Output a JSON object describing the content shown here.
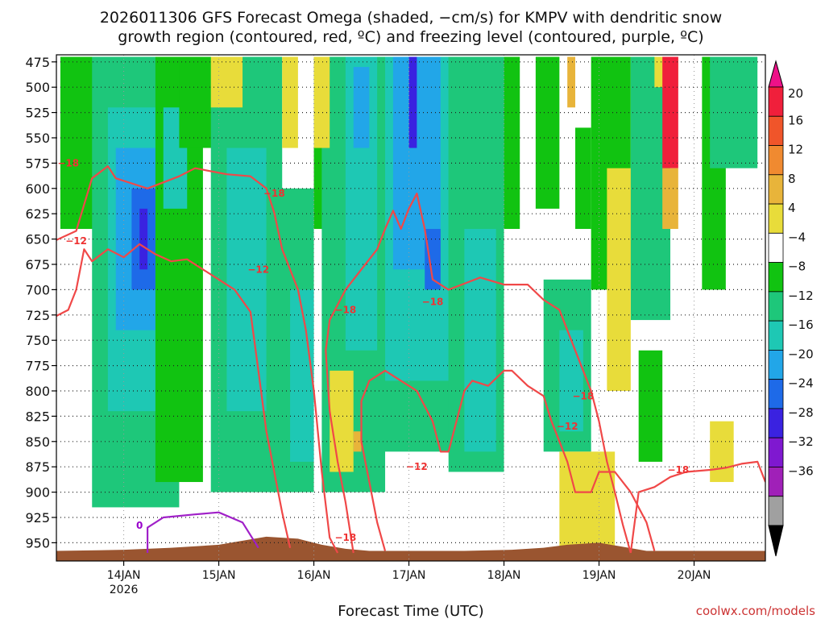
{
  "chart_data": {
    "type": "heatmap",
    "title_lines": [
      "2026011306 GFS Forecast Omega (shaded, −cm/s) for KMPV with dendritic snow",
      "growth region (contoured, red, ºC) and freezing level (contoured, purple, ºC)"
    ],
    "xlabel": "Forecast Time (UTC)",
    "credit": "coolwx.com/models",
    "x_range_hours": [
      -17,
      162
    ],
    "x_ticks": [
      {
        "hour": 0,
        "label": "14JAN",
        "sublabel": "2026"
      },
      {
        "hour": 24,
        "label": "15JAN"
      },
      {
        "hour": 48,
        "label": "16JAN"
      },
      {
        "hour": 72,
        "label": "17JAN"
      },
      {
        "hour": 96,
        "label": "18JAN"
      },
      {
        "hour": 120,
        "label": "19JAN"
      },
      {
        "hour": 144,
        "label": "20JAN"
      }
    ],
    "y_label_hpa": [
      "475",
      "500",
      "525",
      "550",
      "575",
      "600",
      "625",
      "650",
      "675",
      "700",
      "725",
      "750",
      "775",
      "800",
      "825",
      "850",
      "875",
      "900",
      "925",
      "950"
    ],
    "y_range_hpa": [
      468,
      968
    ],
    "colorbar": {
      "labels": [
        "20",
        "16",
        "12",
        "8",
        "4",
        "−4",
        "−8",
        "−12",
        "−16",
        "−20",
        "−24",
        "−28",
        "−32",
        "−36"
      ],
      "colors": [
        "#f01f3b",
        "#f0552a",
        "#f08a30",
        "#e8b43a",
        "#e8dc3a",
        "#ffffff",
        "#11c311",
        "#1ec77a",
        "#1ec8b4",
        "#22a6e8",
        "#1e6ae8",
        "#3a22e0",
        "#7f18d0",
        "#a020b8",
        "#a0a0a0"
      ],
      "top_arrow": "#ee1188",
      "bottom_arrow": "#000000"
    },
    "omega_blobs": [
      {
        "t0": -16,
        "t1": -6,
        "p0": 470,
        "p1": 640,
        "v": -6
      },
      {
        "t0": -8,
        "t1": 14,
        "p0": 470,
        "p1": 915,
        "v": -9
      },
      {
        "t0": -4,
        "t1": 12,
        "p0": 520,
        "p1": 820,
        "v": -12
      },
      {
        "t0": -2,
        "t1": 10,
        "p0": 560,
        "p1": 740,
        "v": -16
      },
      {
        "t0": 2,
        "t1": 8,
        "p0": 600,
        "p1": 700,
        "v": -22
      },
      {
        "t0": 4,
        "t1": 6,
        "p0": 620,
        "p1": 680,
        "v": -26
      },
      {
        "t0": 8,
        "t1": 20,
        "p0": 470,
        "p1": 890,
        "v": -7
      },
      {
        "t0": 10,
        "t1": 16,
        "p0": 520,
        "p1": 620,
        "v": -14
      },
      {
        "t0": 14,
        "t1": 30,
        "p0": 470,
        "p1": 560,
        "v": -6
      },
      {
        "t0": 22,
        "t1": 40,
        "p0": 470,
        "p1": 900,
        "v": -9
      },
      {
        "t0": 26,
        "t1": 36,
        "p0": 560,
        "p1": 820,
        "v": -13
      },
      {
        "t0": 38,
        "t1": 48,
        "p0": 600,
        "p1": 900,
        "v": -8
      },
      {
        "t0": 42,
        "t1": 48,
        "p0": 700,
        "p1": 870,
        "v": -12
      },
      {
        "t0": 48,
        "t1": 56,
        "p0": 470,
        "p1": 640,
        "v": -6
      },
      {
        "t0": 50,
        "t1": 66,
        "p0": 470,
        "p1": 900,
        "v": -8
      },
      {
        "t0": 56,
        "t1": 64,
        "p0": 470,
        "p1": 760,
        "v": -13
      },
      {
        "t0": 58,
        "t1": 62,
        "p0": 480,
        "p1": 560,
        "v": -17
      },
      {
        "t0": 64,
        "t1": 84,
        "p0": 470,
        "p1": 860,
        "v": -9
      },
      {
        "t0": 66,
        "t1": 82,
        "p0": 470,
        "p1": 790,
        "v": -13
      },
      {
        "t0": 68,
        "t1": 80,
        "p0": 470,
        "p1": 680,
        "v": -17
      },
      {
        "t0": 72,
        "t1": 74,
        "p0": 470,
        "p1": 560,
        "v": -26
      },
      {
        "t0": 76,
        "t1": 80,
        "p0": 640,
        "p1": 700,
        "v": -22
      },
      {
        "t0": 82,
        "t1": 96,
        "p0": 470,
        "p1": 880,
        "v": -9
      },
      {
        "t0": 86,
        "t1": 94,
        "p0": 640,
        "p1": 860,
        "v": -13
      },
      {
        "t0": 96,
        "t1": 100,
        "p0": 470,
        "p1": 640,
        "v": -7
      },
      {
        "t0": 104,
        "t1": 110,
        "p0": 470,
        "p1": 620,
        "v": -7
      },
      {
        "t0": 106,
        "t1": 118,
        "p0": 690,
        "p1": 860,
        "v": -9
      },
      {
        "t0": 110,
        "t1": 116,
        "p0": 740,
        "p1": 840,
        "v": -13
      },
      {
        "t0": 114,
        "t1": 118,
        "p0": 540,
        "p1": 640,
        "v": -6
      },
      {
        "t0": 118,
        "t1": 128,
        "p0": 470,
        "p1": 700,
        "v": -7
      },
      {
        "t0": 128,
        "t1": 138,
        "p0": 470,
        "p1": 730,
        "v": -8
      },
      {
        "t0": 130,
        "t1": 136,
        "p0": 760,
        "p1": 870,
        "v": -7
      },
      {
        "t0": 146,
        "t1": 152,
        "p0": 470,
        "p1": 700,
        "v": -6
      },
      {
        "t0": 148,
        "t1": 160,
        "p0": 470,
        "p1": 580,
        "v": -9
      },
      {
        "t0": 22,
        "t1": 30,
        "p0": 470,
        "p1": 520,
        "v": 5
      },
      {
        "t0": 40,
        "t1": 44,
        "p0": 470,
        "p1": 560,
        "v": 5
      },
      {
        "t0": 48,
        "t1": 52,
        "p0": 470,
        "p1": 560,
        "v": 6
      },
      {
        "t0": 52,
        "t1": 58,
        "p0": 780,
        "p1": 880,
        "v": 6
      },
      {
        "t0": 58,
        "t1": 60,
        "p0": 840,
        "p1": 860,
        "v": 10
      },
      {
        "t0": 110,
        "t1": 124,
        "p0": 860,
        "p1": 960,
        "v": 5
      },
      {
        "t0": 112,
        "t1": 114,
        "p0": 470,
        "p1": 520,
        "v": 9
      },
      {
        "t0": 122,
        "t1": 128,
        "p0": 580,
        "p1": 800,
        "v": 5
      },
      {
        "t0": 134,
        "t1": 140,
        "p0": 470,
        "p1": 500,
        "v": 5
      },
      {
        "t0": 148,
        "t1": 154,
        "p0": 830,
        "p1": 890,
        "v": 5
      },
      {
        "t0": 136,
        "t1": 140,
        "p0": 470,
        "p1": 580,
        "v": 18
      },
      {
        "t0": 136,
        "t1": 140,
        "p0": 580,
        "p1": 640,
        "v": 10
      }
    ],
    "series": [
      {
        "name": "-18 upper",
        "color": "#f04848",
        "points": [
          [
            -17,
            651
          ],
          [
            -12,
            642
          ],
          [
            -8,
            590
          ],
          [
            -4,
            578
          ],
          [
            -2,
            590
          ],
          [
            2,
            595
          ],
          [
            6,
            600
          ],
          [
            10,
            594
          ],
          [
            14,
            588
          ],
          [
            18,
            580
          ],
          [
            26,
            586
          ],
          [
            32,
            588
          ],
          [
            36,
            600
          ],
          [
            38,
            624
          ],
          [
            40,
            660
          ],
          [
            44,
            700
          ],
          [
            46,
            740
          ],
          [
            48,
            800
          ],
          [
            50,
            880
          ],
          [
            52,
            945
          ],
          [
            54,
            960
          ]
        ]
      },
      {
        "name": "-12 upper",
        "color": "#f04848",
        "points": [
          [
            -17,
            726
          ],
          [
            -14,
            720
          ],
          [
            -12,
            700
          ],
          [
            -10,
            660
          ],
          [
            -8,
            672
          ],
          [
            -4,
            660
          ],
          [
            0,
            668
          ],
          [
            4,
            655
          ],
          [
            8,
            665
          ],
          [
            12,
            672
          ],
          [
            16,
            670
          ],
          [
            20,
            680
          ],
          [
            24,
            690
          ],
          [
            28,
            700
          ],
          [
            32,
            722
          ],
          [
            34,
            780
          ],
          [
            36,
            840
          ],
          [
            38,
            880
          ],
          [
            40,
            920
          ],
          [
            42,
            955
          ]
        ]
      },
      {
        "name": "-18 lower loop",
        "color": "#f04848",
        "points": [
          [
            58,
            960
          ],
          [
            56,
            910
          ],
          [
            54,
            870
          ],
          [
            52,
            820
          ],
          [
            51,
            760
          ],
          [
            52,
            730
          ],
          [
            56,
            700
          ],
          [
            60,
            680
          ],
          [
            64,
            660
          ],
          [
            66,
            640
          ],
          [
            68,
            622
          ],
          [
            70,
            640
          ],
          [
            72,
            620
          ],
          [
            74,
            605
          ],
          [
            76,
            640
          ],
          [
            78,
            690
          ],
          [
            82,
            700
          ],
          [
            86,
            694
          ],
          [
            90,
            688
          ],
          [
            96,
            695
          ],
          [
            102,
            695
          ],
          [
            106,
            710
          ],
          [
            110,
            720
          ],
          [
            114,
            760
          ],
          [
            118,
            800
          ],
          [
            120,
            830
          ],
          [
            122,
            870
          ],
          [
            124,
            900
          ],
          [
            126,
            932
          ],
          [
            128,
            960
          ]
        ]
      },
      {
        "name": "-12 lower loop",
        "color": "#f04848",
        "points": [
          [
            66,
            958
          ],
          [
            64,
            930
          ],
          [
            62,
            890
          ],
          [
            60,
            850
          ],
          [
            60,
            810
          ],
          [
            62,
            790
          ],
          [
            66,
            780
          ],
          [
            70,
            790
          ],
          [
            74,
            800
          ],
          [
            78,
            830
          ],
          [
            80,
            860
          ],
          [
            82,
            860
          ],
          [
            86,
            800
          ],
          [
            88,
            790
          ],
          [
            92,
            795
          ],
          [
            96,
            780
          ],
          [
            98,
            780
          ],
          [
            102,
            795
          ],
          [
            106,
            805
          ],
          [
            108,
            830
          ],
          [
            110,
            850
          ],
          [
            112,
            870
          ],
          [
            114,
            900
          ],
          [
            118,
            900
          ],
          [
            120,
            880
          ],
          [
            124,
            880
          ],
          [
            128,
            900
          ],
          [
            132,
            930
          ],
          [
            134,
            958
          ]
        ]
      },
      {
        "name": "-18 right",
        "color": "#f04848",
        "points": [
          [
            128,
            960
          ],
          [
            130,
            900
          ],
          [
            134,
            895
          ],
          [
            138,
            885
          ],
          [
            142,
            880
          ],
          [
            148,
            878
          ],
          [
            152,
            876
          ],
          [
            156,
            872
          ],
          [
            160,
            870
          ],
          [
            162,
            890
          ]
        ]
      },
      {
        "name": "freezing 0C",
        "color": "#a020c8",
        "points": [
          [
            6,
            960
          ],
          [
            6,
            935
          ],
          [
            10,
            925
          ],
          [
            18,
            922
          ],
          [
            24,
            920
          ],
          [
            30,
            930
          ],
          [
            34,
            955
          ]
        ]
      }
    ],
    "contour_labels": [
      {
        "text": "−18",
        "t": -14,
        "p": 575
      },
      {
        "text": "−18",
        "t": 38,
        "p": 605
      },
      {
        "text": "−12",
        "t": -12,
        "p": 652
      },
      {
        "text": "−12",
        "t": 34,
        "p": 680
      },
      {
        "text": "−18",
        "t": 56,
        "p": 720
      },
      {
        "text": "−18",
        "t": 78,
        "p": 712
      },
      {
        "text": "−12",
        "t": 74,
        "p": 875
      },
      {
        "text": "−18",
        "t": 56,
        "p": 945
      },
      {
        "text": "−18",
        "t": 116,
        "p": 805
      },
      {
        "text": "−12",
        "t": 112,
        "p": 835
      },
      {
        "text": "−18",
        "t": 140,
        "p": 878
      },
      {
        "text": "0",
        "t": 4,
        "p": 933
      }
    ],
    "terrain": {
      "color": "#9a5530",
      "points": [
        [
          -17,
          958
        ],
        [
          0,
          957
        ],
        [
          12,
          955
        ],
        [
          24,
          952
        ],
        [
          30,
          948
        ],
        [
          36,
          944
        ],
        [
          44,
          946
        ],
        [
          50,
          952
        ],
        [
          56,
          956
        ],
        [
          62,
          958
        ],
        [
          74,
          958
        ],
        [
          86,
          958
        ],
        [
          98,
          957
        ],
        [
          106,
          955
        ],
        [
          112,
          952
        ],
        [
          120,
          950
        ],
        [
          126,
          954
        ],
        [
          132,
          958
        ],
        [
          150,
          958
        ],
        [
          162,
          958
        ]
      ]
    }
  }
}
